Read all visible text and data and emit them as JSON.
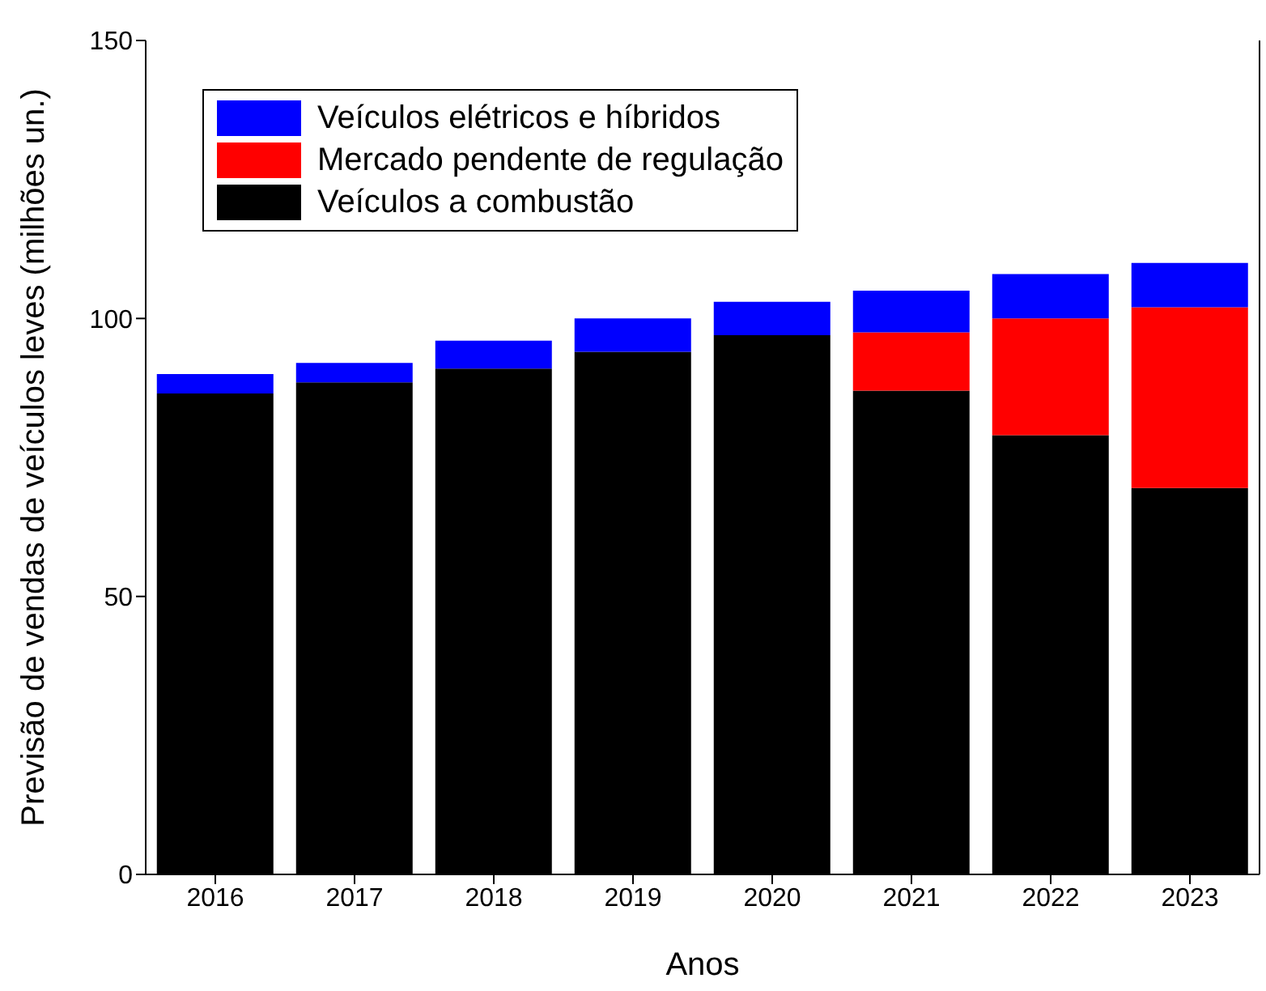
{
  "chart_data": {
    "type": "bar",
    "stacked": true,
    "xlabel": "Anos",
    "ylabel": "Previsão de vendas de veículos leves (milhões un.)",
    "categories": [
      "2016",
      "2017",
      "2018",
      "2019",
      "2020",
      "2021",
      "2022",
      "2023"
    ],
    "ylim": [
      0,
      150
    ],
    "yticks": [
      0,
      50,
      100,
      150
    ],
    "legend": "top left",
    "grid": false,
    "series": [
      {
        "name": "Veículos a combustão",
        "color": "#000000",
        "values": [
          86.5,
          88.5,
          91,
          94,
          97,
          87,
          79,
          69.5
        ]
      },
      {
        "name": "Mercado pendente de regulação",
        "color": "#ff0000",
        "values": [
          0,
          0,
          0,
          0,
          0,
          10.5,
          21,
          32.5
        ]
      },
      {
        "name": "Veículos elétricos e híbridos",
        "color": "#0000ff",
        "values": [
          3.5,
          3.5,
          5,
          6,
          6,
          7.5,
          8,
          8
        ]
      }
    ]
  }
}
